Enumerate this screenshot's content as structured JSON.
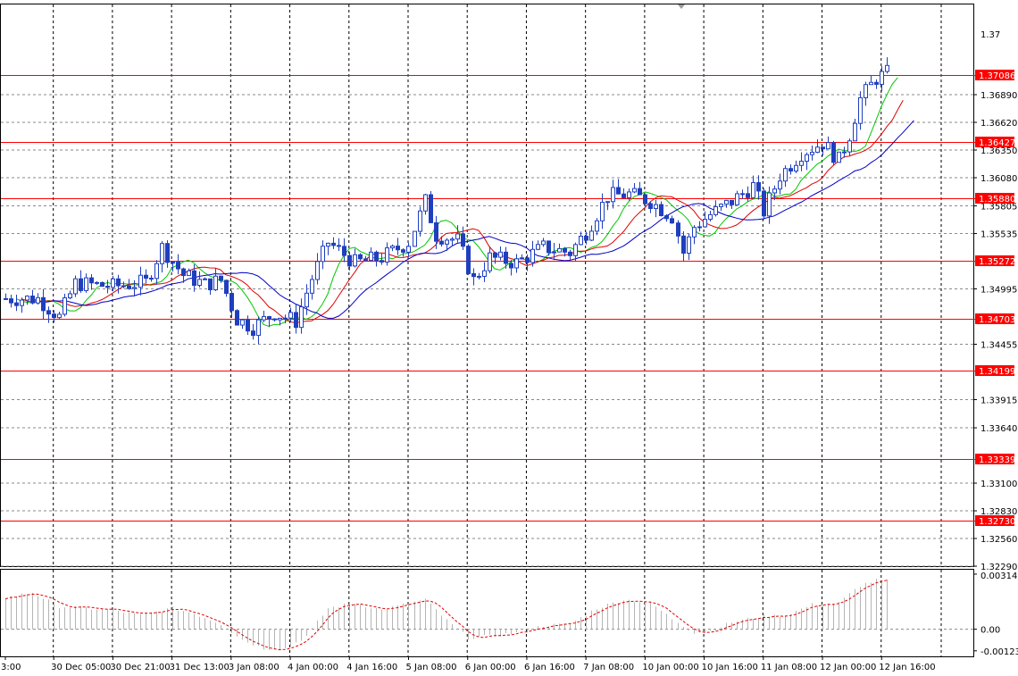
{
  "chart_data": {
    "type": "candlestick",
    "instrument_view": "price chart with moving averages, horizontal levels and oscillator",
    "colors": {
      "candles": "#1f3fbf",
      "level_lines": "#ff0000",
      "level_label_bg": "#ff0000",
      "ma_fast": "#00c800",
      "ma_mid": "#e00000",
      "ma_slow": "#0000c8",
      "grid": "#8a8a8a",
      "osc_hist": "#b4b4b4",
      "osc_signal": "#e00000"
    },
    "price_axis": {
      "range": [
        1.3229,
        1.3777
      ],
      "ticks": [
        "1.36890",
        "1.36620",
        "1.36350",
        "1.36080",
        "1.35805",
        "1.35535",
        "1.34995",
        "1.34455",
        "1.33915",
        "1.33640",
        "1.33100",
        "1.32830",
        "1.32560",
        "1.32290"
      ],
      "top_partial_label": "1.37"
    },
    "levels": [
      {
        "value": 1.37086,
        "label": "1.37086"
      },
      {
        "value": 1.36427,
        "label": "1.36427"
      },
      {
        "value": 1.3588,
        "label": "1.35880"
      },
      {
        "value": 1.35272,
        "label": "1.35272"
      },
      {
        "value": 1.34703,
        "label": "1.34703"
      },
      {
        "value": 1.34199,
        "label": "1.34199"
      },
      {
        "value": 1.33339,
        "label": "1.33339"
      },
      {
        "value": 1.3273,
        "label": "1.32730"
      }
    ],
    "x_axis": {
      "bar_count": 165,
      "labels": [
        {
          "text": "3:00",
          "bar": 0
        },
        {
          "text": "30 Dec 05:00",
          "bar": 9
        },
        {
          "text": "30 Dec 21:00",
          "bar": 20
        },
        {
          "text": "31 Dec 13:00",
          "bar": 31
        },
        {
          "text": "3 Jan 08:00",
          "bar": 42
        },
        {
          "text": "4 Jan 00:00",
          "bar": 53
        },
        {
          "text": "4 Jan 16:00",
          "bar": 64
        },
        {
          "text": "5 Jan 08:00",
          "bar": 75
        },
        {
          "text": "6 Jan 00:00",
          "bar": 86
        },
        {
          "text": "6 Jan 16:00",
          "bar": 97
        },
        {
          "text": "7 Jan 08:00",
          "bar": 108
        },
        {
          "text": "10 Jan 00:00",
          "bar": 119
        },
        {
          "text": "10 Jan 16:00",
          "bar": 130
        },
        {
          "text": "11 Jan 08:00",
          "bar": 141
        },
        {
          "text": "12 Jan 00:00",
          "bar": 152
        },
        {
          "text": "12 Jan 16:00",
          "bar": 163
        }
      ]
    },
    "price_path": [
      [
        0,
        1.349
      ],
      [
        6,
        1.349
      ],
      [
        10,
        1.3472
      ],
      [
        13,
        1.3505
      ],
      [
        20,
        1.3502
      ],
      [
        26,
        1.3506
      ],
      [
        29,
        1.354
      ],
      [
        33,
        1.3513
      ],
      [
        37,
        1.3504
      ],
      [
        40,
        1.3508
      ],
      [
        43,
        1.347
      ],
      [
        46,
        1.3462
      ],
      [
        50,
        1.3476
      ],
      [
        54,
        1.3468
      ],
      [
        57,
        1.351
      ],
      [
        60,
        1.3545
      ],
      [
        65,
        1.3525
      ],
      [
        70,
        1.353
      ],
      [
        75,
        1.3545
      ],
      [
        78,
        1.3585
      ],
      [
        80,
        1.3552
      ],
      [
        84,
        1.3547
      ],
      [
        87,
        1.3508
      ],
      [
        90,
        1.353
      ],
      [
        95,
        1.3525
      ],
      [
        100,
        1.354
      ],
      [
        105,
        1.3535
      ],
      [
        108,
        1.3555
      ],
      [
        112,
        1.359
      ],
      [
        116,
        1.3592
      ],
      [
        120,
        1.3585
      ],
      [
        124,
        1.357
      ],
      [
        126,
        1.3535
      ],
      [
        128,
        1.356
      ],
      [
        131,
        1.3572
      ],
      [
        135,
        1.3585
      ],
      [
        139,
        1.36
      ],
      [
        141,
        1.3575
      ],
      [
        144,
        1.361
      ],
      [
        148,
        1.3632
      ],
      [
        152,
        1.3642
      ],
      [
        155,
        1.3625
      ],
      [
        157,
        1.365
      ],
      [
        159,
        1.3685
      ],
      [
        162,
        1.3705
      ],
      [
        164,
        1.371
      ],
      [
        166,
        1.3712
      ]
    ],
    "oscillator": {
      "range": [
        -0.00155,
        0.0034
      ],
      "ticks": [
        "0.003149",
        "0.00",
        "-0.001234"
      ],
      "path": [
        [
          0,
          0.0018
        ],
        [
          5,
          0.0021
        ],
        [
          10,
          0.0013
        ],
        [
          20,
          0.0011
        ],
        [
          25,
          0.0008
        ],
        [
          31,
          0.0012
        ],
        [
          35,
          0.0009
        ],
        [
          40,
          0.0003
        ],
        [
          44,
          -0.0006
        ],
        [
          48,
          -0.0011
        ],
        [
          52,
          -0.0011
        ],
        [
          56,
          -0.0004
        ],
        [
          60,
          0.0012
        ],
        [
          65,
          0.0015
        ],
        [
          70,
          0.0011
        ],
        [
          74,
          0.0014
        ],
        [
          78,
          0.0017
        ],
        [
          82,
          0.0005
        ],
        [
          86,
          -0.0005
        ],
        [
          90,
          -0.0004
        ],
        [
          95,
          -0.0002
        ],
        [
          100,
          0.0002
        ],
        [
          105,
          0.0003
        ],
        [
          110,
          0.0012
        ],
        [
          115,
          0.0017
        ],
        [
          120,
          0.0015
        ],
        [
          124,
          0.0006
        ],
        [
          128,
          -0.0002
        ],
        [
          131,
          -0.0001
        ],
        [
          135,
          0.0004
        ],
        [
          140,
          0.0007
        ],
        [
          145,
          0.0008
        ],
        [
          150,
          0.0014
        ],
        [
          155,
          0.0015
        ],
        [
          159,
          0.0025
        ],
        [
          162,
          0.0028
        ],
        [
          166,
          0.0027
        ]
      ]
    }
  }
}
